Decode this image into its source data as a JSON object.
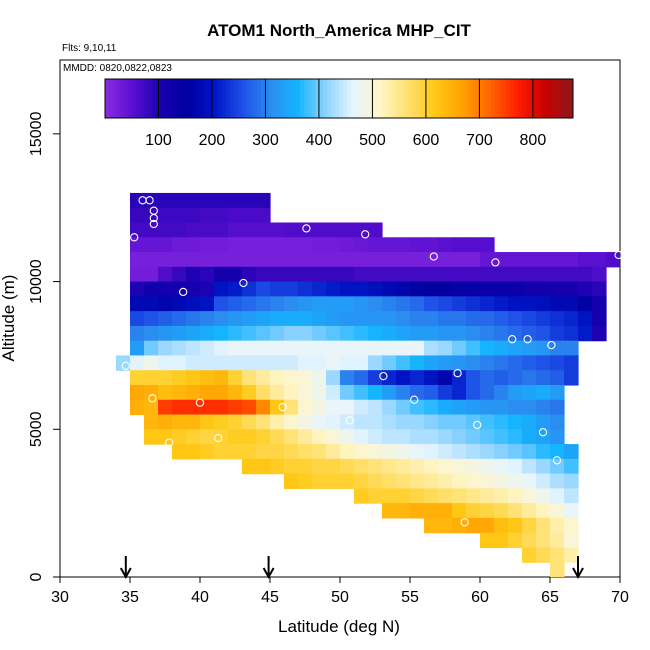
{
  "chart_data": {
    "type": "heatmap",
    "title": "ATOM1 North_America MHP_CIT",
    "flights_label": "Flts: 9,10,11",
    "dates_label": "MMDD: 0820,0822,0823",
    "xlabel": "Latitude (deg N)",
    "ylabel": "Altitude (m)",
    "xlim": [
      30,
      70
    ],
    "ylim": [
      0,
      17500
    ],
    "xticks": [
      30,
      35,
      40,
      45,
      50,
      55,
      60,
      65,
      70
    ],
    "yticks": [
      0,
      5000,
      10000,
      15000
    ],
    "colorbar": {
      "min": 0,
      "max": 875,
      "ticks": [
        100,
        200,
        300,
        400,
        500,
        600,
        700,
        800
      ],
      "colors": [
        "#8a2be2",
        "#5a0fd0",
        "#1a00b0",
        "#0000a0",
        "#0015c8",
        "#1e50e6",
        "#2c8cf0",
        "#14b4ff",
        "#8cd2ff",
        "#e6f5ff",
        "#fff5c8",
        "#ffe16e",
        "#ffc814",
        "#ffa000",
        "#ff6400",
        "#ff1e00",
        "#c80000",
        "#8b1a1a"
      ]
    },
    "grid": false,
    "lat_markers": [
      34.7,
      44.9,
      67.0
    ],
    "cell_grid": {
      "lat_start": 35,
      "lat_step": 1,
      "alt_top": 12900,
      "alt_step": 500,
      "rows": [
        {
          "alt": 12750,
          "from": 35,
          "values": [
            90,
            90,
            90,
            90,
            90,
            90,
            90,
            90,
            90,
            90
          ]
        },
        {
          "alt": 12250,
          "from": 35,
          "values": [
            80,
            80,
            75,
            75,
            75,
            70,
            70,
            65,
            65,
            65
          ]
        },
        {
          "alt": 11750,
          "from": 35,
          "values": [
            70,
            70,
            70,
            70,
            65,
            65,
            65,
            55,
            55,
            55,
            55,
            60,
            60,
            60,
            60,
            60,
            60,
            60
          ]
        },
        {
          "alt": 11250,
          "from": 35,
          "values": [
            40,
            40,
            40,
            30,
            30,
            25,
            25,
            20,
            20,
            20,
            20,
            20,
            20,
            25,
            25,
            30,
            35,
            40,
            40,
            40,
            45,
            45,
            50,
            55,
            55,
            55
          ]
        },
        {
          "alt": 10750,
          "from": 35,
          "values": [
            20,
            20,
            20,
            20,
            20,
            20,
            20,
            20,
            20,
            20,
            20,
            20,
            20,
            20,
            20,
            20,
            20,
            20,
            20,
            20,
            20,
            20,
            20,
            20,
            20,
            40,
            40,
            40,
            40,
            40,
            40,
            40,
            50,
            50,
            60
          ]
        },
        {
          "alt": 10250,
          "from": 35,
          "values": [
            25,
            25,
            60,
            80,
            100,
            90,
            110,
            110,
            90,
            80,
            80,
            80,
            80,
            80,
            80,
            80,
            70,
            70,
            70,
            70,
            70,
            70,
            70,
            70,
            70,
            70,
            70,
            70,
            70,
            70,
            70,
            70,
            70,
            60
          ]
        },
        {
          "alt": 9750,
          "from": 35,
          "values": [
            100,
            120,
            120,
            110,
            110,
            100,
            200,
            210,
            230,
            250,
            240,
            240,
            230,
            220,
            210,
            200,
            200,
            190,
            180,
            170,
            160,
            150,
            150,
            140,
            140,
            130,
            130,
            130,
            120,
            120,
            110,
            110,
            100,
            90
          ]
        },
        {
          "alt": 9250,
          "from": 35,
          "values": [
            180,
            180,
            170,
            180,
            190,
            200,
            260,
            270,
            280,
            290,
            300,
            310,
            320,
            330,
            330,
            330,
            320,
            310,
            300,
            290,
            280,
            260,
            250,
            240,
            230,
            220,
            210,
            200,
            200,
            190,
            180,
            180,
            160,
            110
          ]
        },
        {
          "alt": 8750,
          "from": 35,
          "values": [
            250,
            260,
            270,
            280,
            290,
            300,
            310,
            320,
            330,
            340,
            350,
            350,
            350,
            340,
            330,
            320,
            320,
            320,
            320,
            310,
            300,
            300,
            290,
            290,
            280,
            280,
            270,
            260,
            250,
            240,
            230,
            220,
            200,
            110
          ]
        },
        {
          "alt": 8250,
          "from": 35,
          "values": [
            300,
            310,
            320,
            330,
            340,
            350,
            360,
            370,
            380,
            390,
            400,
            410,
            410,
            400,
            390,
            380,
            370,
            360,
            350,
            340,
            330,
            330,
            320,
            320,
            310,
            300,
            290,
            280,
            270,
            260,
            240,
            230,
            210,
            100
          ]
        },
        {
          "alt": 7750,
          "from": 35,
          "values": [
            330,
            400,
            420,
            430,
            440,
            450,
            460,
            470,
            470,
            470,
            470,
            470,
            470,
            470,
            470,
            470,
            470,
            470,
            470,
            470,
            470,
            430,
            420,
            400,
            380,
            360,
            350,
            340,
            330,
            320,
            300,
            300
          ]
        },
        {
          "alt": 7250,
          "from": 34,
          "values": [
            420,
            460,
            480,
            460,
            460,
            450,
            450,
            450,
            450,
            450,
            450,
            450,
            450,
            460,
            460,
            470,
            460,
            460,
            420,
            400,
            380,
            360,
            340,
            330,
            320,
            310,
            300,
            290,
            280,
            270,
            260,
            250,
            240
          ]
        },
        {
          "alt": 6750,
          "from": 35,
          "values": [
            600,
            600,
            600,
            610,
            620,
            630,
            640,
            600,
            560,
            540,
            520,
            510,
            500,
            480,
            420,
            300,
            280,
            240,
            220,
            200,
            220,
            200,
            170,
            220,
            260,
            280,
            270,
            280,
            290,
            280,
            270,
            240
          ]
        },
        {
          "alt": 6250,
          "from": 35,
          "values": [
            660,
            650,
            630,
            640,
            650,
            660,
            660,
            640,
            610,
            570,
            540,
            520,
            500,
            480,
            450,
            400,
            380,
            360,
            330,
            300,
            280,
            270,
            240,
            220,
            260,
            280,
            300,
            330,
            340,
            350,
            330
          ]
        },
        {
          "alt": 5750,
          "from": 35,
          "values": [
            650,
            640,
            750,
            760,
            760,
            760,
            760,
            750,
            740,
            690,
            620,
            560,
            510,
            490,
            470,
            470,
            450,
            440,
            420,
            400,
            380,
            370,
            350,
            340,
            330,
            320,
            320,
            310,
            310,
            300,
            290
          ]
        },
        {
          "alt": 5250,
          "from": 36,
          "values": [
            640,
            650,
            640,
            640,
            620,
            610,
            600,
            580,
            560,
            530,
            510,
            490,
            470,
            460,
            450,
            440,
            440,
            430,
            420,
            420,
            410,
            400,
            400,
            390,
            380,
            370,
            360,
            350,
            330,
            310
          ]
        },
        {
          "alt": 4750,
          "from": 36,
          "values": [
            620,
            620,
            610,
            600,
            590,
            600,
            610,
            610,
            600,
            580,
            560,
            540,
            520,
            500,
            480,
            460,
            450,
            440,
            440,
            430,
            430,
            420,
            410,
            400,
            390,
            380,
            370,
            350,
            340,
            320
          ]
        },
        {
          "alt": 4250,
          "from": 38,
          "values": [
            620,
            620,
            610,
            600,
            600,
            600,
            590,
            590,
            580,
            570,
            560,
            540,
            520,
            510,
            500,
            490,
            480,
            470,
            460,
            450,
            440,
            430,
            420,
            410,
            400,
            390,
            370,
            360,
            340
          ]
        },
        {
          "alt": 3750,
          "from": 43,
          "values": [
            620,
            620,
            610,
            600,
            600,
            590,
            590,
            580,
            570,
            560,
            550,
            540,
            530,
            520,
            510,
            500,
            490,
            480,
            470,
            460,
            440,
            420,
            400,
            380
          ]
        },
        {
          "alt": 3250,
          "from": 46,
          "values": [
            620,
            610,
            600,
            600,
            600,
            590,
            580,
            570,
            560,
            550,
            540,
            530,
            520,
            510,
            500,
            490,
            480,
            470,
            450,
            430,
            420
          ]
        },
        {
          "alt": 2750,
          "from": 51,
          "values": [
            610,
            600,
            600,
            600,
            590,
            580,
            570,
            560,
            550,
            540,
            530,
            520,
            500,
            480,
            460,
            440
          ]
        },
        {
          "alt": 2250,
          "from": 53,
          "values": [
            640,
            640,
            650,
            650,
            650,
            620,
            600,
            590,
            580,
            560,
            540,
            520,
            500,
            470
          ]
        },
        {
          "alt": 1750,
          "from": 56,
          "values": [
            640,
            640,
            650,
            660,
            660,
            630,
            620,
            590,
            560,
            530,
            510
          ]
        },
        {
          "alt": 1250,
          "from": 60,
          "values": [
            620,
            620,
            600,
            580,
            560,
            540,
            500
          ]
        },
        {
          "alt": 750,
          "from": 63,
          "values": [
            600,
            580,
            560,
            530
          ]
        },
        {
          "alt": 250,
          "from": 65,
          "values": [
            560
          ]
        }
      ]
    },
    "sample_points": [
      {
        "lat": 35.9,
        "alt": 12750
      },
      {
        "lat": 36.4,
        "alt": 12750
      },
      {
        "lat": 36.7,
        "alt": 12400
      },
      {
        "lat": 36.7,
        "alt": 12150
      },
      {
        "lat": 36.7,
        "alt": 11950
      },
      {
        "lat": 35.3,
        "alt": 11500
      },
      {
        "lat": 47.6,
        "alt": 11800
      },
      {
        "lat": 51.8,
        "alt": 11600
      },
      {
        "lat": 56.7,
        "alt": 10850
      },
      {
        "lat": 61.1,
        "alt": 10650
      },
      {
        "lat": 69.9,
        "alt": 10900
      },
      {
        "lat": 43.1,
        "alt": 9950
      },
      {
        "lat": 38.8,
        "alt": 9650
      },
      {
        "lat": 62.3,
        "alt": 8050
      },
      {
        "lat": 63.4,
        "alt": 8050
      },
      {
        "lat": 65.1,
        "alt": 7850
      },
      {
        "lat": 34.7,
        "alt": 7150
      },
      {
        "lat": 53.1,
        "alt": 6800
      },
      {
        "lat": 58.4,
        "alt": 6900
      },
      {
        "lat": 36.6,
        "alt": 6050
      },
      {
        "lat": 40.0,
        "alt": 5900
      },
      {
        "lat": 45.9,
        "alt": 5750
      },
      {
        "lat": 55.3,
        "alt": 6000
      },
      {
        "lat": 50.7,
        "alt": 5300
      },
      {
        "lat": 59.8,
        "alt": 5150
      },
      {
        "lat": 37.8,
        "alt": 4550
      },
      {
        "lat": 41.3,
        "alt": 4700
      },
      {
        "lat": 64.5,
        "alt": 4900
      },
      {
        "lat": 65.5,
        "alt": 3950
      },
      {
        "lat": 58.9,
        "alt": 1850
      }
    ]
  }
}
